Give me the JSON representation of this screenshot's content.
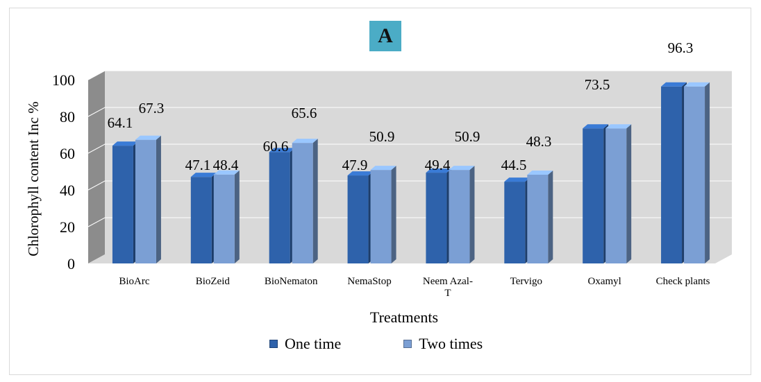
{
  "panel_label": "A",
  "chart_data": {
    "type": "bar",
    "style": "3d-clustered-column",
    "title": "",
    "xlabel": "Treatments",
    "ylabel": "Chlorophyll content Inc %",
    "ylim": [
      0,
      100
    ],
    "yticks": [
      0,
      20,
      40,
      60,
      80,
      100
    ],
    "grid": true,
    "legend_position": "bottom",
    "categories": [
      "BioArc",
      "BioZeid",
      "BioNematon",
      "NemaStop",
      "Neem Azal-\nT",
      "Tervigo",
      "Oxamyl",
      "Check plants"
    ],
    "series": [
      {
        "name": "One time",
        "color": "#2e62ab",
        "values": [
          64.1,
          47.1,
          60.6,
          47.9,
          49.4,
          44.5,
          73.5,
          96.3
        ]
      },
      {
        "name": "Two times",
        "color": "#7b9fd4",
        "values": [
          67.3,
          48.4,
          65.6,
          50.9,
          50.9,
          48.3,
          73.5,
          96.3
        ]
      }
    ],
    "data_labels": [
      {
        "category": "BioArc",
        "series": "One time",
        "text": "64.1"
      },
      {
        "category": "BioArc",
        "series": "Two times",
        "text": "67.3"
      },
      {
        "category": "BioZeid",
        "series": "One time",
        "text": "47.1"
      },
      {
        "category": "BioZeid",
        "series": "Two times",
        "text": "48.4"
      },
      {
        "category": "BioNematon",
        "series": "One time",
        "text": "60.6"
      },
      {
        "category": "BioNematon",
        "series": "Two times",
        "text": "65.6"
      },
      {
        "category": "NemaStop",
        "series": "One time",
        "text": "47.9"
      },
      {
        "category": "NemaStop",
        "series": "Two times",
        "text": "50.9"
      },
      {
        "category": "Neem Azal-\nT",
        "series": "One time",
        "text": "49.4"
      },
      {
        "category": "Neem Azal-\nT",
        "series": "Two times",
        "text": "50.9"
      },
      {
        "category": "Tervigo",
        "series": "One time",
        "text": "44.5"
      },
      {
        "category": "Tervigo",
        "series": "Two times",
        "text": "48.3"
      },
      {
        "category": "Oxamyl",
        "series": "One time",
        "text": "73.5"
      },
      {
        "category": "Check plants",
        "series": "One time",
        "text": "96.3"
      }
    ]
  }
}
